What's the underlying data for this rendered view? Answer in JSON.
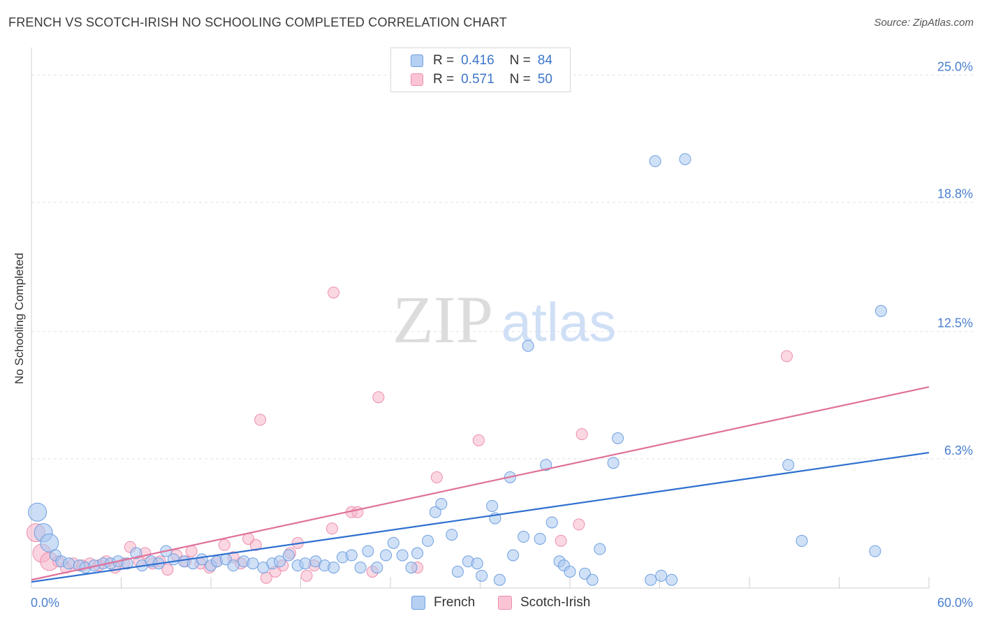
{
  "title": "FRENCH VS SCOTCH-IRISH NO SCHOOLING COMPLETED CORRELATION CHART",
  "source": "Source: ZipAtlas.com",
  "watermark": {
    "zip": "ZIP",
    "atlas": "atlas"
  },
  "legend": {
    "r_label": "R =",
    "n_label": "N =",
    "rows": [
      {
        "name": "French",
        "r": "0.416",
        "n": "84"
      },
      {
        "name": "Scotch-Irish",
        "r": "0.571",
        "n": "50"
      }
    ]
  },
  "colors": {
    "french_fill": "#a9c8f0",
    "french_stroke": "#6f9fe0",
    "french_line": "#2e6fcf",
    "scotch_fill": "#f7b6cb",
    "scotch_stroke": "#ec8fae",
    "scotch_line": "#e0709a",
    "tick_text": "#4a7fd0",
    "grid": "#e2e2e2"
  },
  "chart_data": {
    "type": "scatter",
    "title": "FRENCH VS SCOTCH-IRISH NO SCHOOLING COMPLETED CORRELATION CHART",
    "xlabel": "",
    "ylabel": "No Schooling Completed",
    "xlim": [
      0,
      60
    ],
    "ylim": [
      0,
      26
    ],
    "x_tick_labels": [
      "0.0%",
      "60.0%"
    ],
    "y_ticks": [
      6.3,
      12.5,
      18.8,
      25.0
    ],
    "y_tick_labels": [
      "6.3%",
      "12.5%",
      "18.8%",
      "25.0%"
    ],
    "series": [
      {
        "name": "French",
        "trend": [
          [
            0,
            0.3
          ],
          [
            60,
            6.6
          ]
        ],
        "points": [
          [
            0.4,
            3.7
          ],
          [
            0.8,
            2.7
          ],
          [
            1.2,
            2.2
          ],
          [
            1.6,
            1.6
          ],
          [
            2.0,
            1.3
          ],
          [
            2.5,
            1.2
          ],
          [
            3.2,
            1.1
          ],
          [
            3.6,
            1.0
          ],
          [
            4.2,
            1.1
          ],
          [
            4.8,
            1.2
          ],
          [
            5.3,
            1.2
          ],
          [
            5.8,
            1.3
          ],
          [
            6.4,
            1.2
          ],
          [
            7.0,
            1.7
          ],
          [
            7.4,
            1.1
          ],
          [
            8.0,
            1.3
          ],
          [
            8.5,
            1.2
          ],
          [
            9.0,
            1.8
          ],
          [
            9.5,
            1.4
          ],
          [
            10.2,
            1.3
          ],
          [
            10.8,
            1.2
          ],
          [
            11.4,
            1.4
          ],
          [
            12.0,
            1.1
          ],
          [
            12.4,
            1.3
          ],
          [
            13.0,
            1.4
          ],
          [
            13.5,
            1.1
          ],
          [
            14.2,
            1.3
          ],
          [
            14.8,
            1.2
          ],
          [
            15.5,
            1.0
          ],
          [
            16.1,
            1.2
          ],
          [
            16.6,
            1.3
          ],
          [
            17.2,
            1.6
          ],
          [
            17.8,
            1.1
          ],
          [
            18.3,
            1.2
          ],
          [
            19.0,
            1.3
          ],
          [
            19.6,
            1.1
          ],
          [
            20.2,
            1.0
          ],
          [
            20.8,
            1.5
          ],
          [
            21.4,
            1.6
          ],
          [
            22.0,
            1.0
          ],
          [
            22.5,
            1.8
          ],
          [
            23.1,
            1.0
          ],
          [
            23.7,
            1.6
          ],
          [
            24.2,
            2.2
          ],
          [
            24.8,
            1.6
          ],
          [
            25.4,
            1.0
          ],
          [
            25.8,
            1.7
          ],
          [
            26.5,
            2.3
          ],
          [
            27.0,
            3.7
          ],
          [
            27.4,
            4.1
          ],
          [
            28.1,
            2.6
          ],
          [
            28.5,
            0.8
          ],
          [
            29.2,
            1.3
          ],
          [
            29.8,
            1.2
          ],
          [
            30.1,
            0.6
          ],
          [
            30.8,
            4.0
          ],
          [
            31.0,
            3.4
          ],
          [
            31.3,
            0.4
          ],
          [
            32.0,
            5.4
          ],
          [
            32.2,
            1.6
          ],
          [
            32.9,
            2.5
          ],
          [
            33.2,
            11.8
          ],
          [
            34.0,
            2.4
          ],
          [
            34.4,
            6.0
          ],
          [
            34.8,
            3.2
          ],
          [
            35.3,
            1.3
          ],
          [
            35.6,
            1.1
          ],
          [
            36.0,
            0.8
          ],
          [
            37.0,
            0.7
          ],
          [
            37.5,
            0.4
          ],
          [
            38.0,
            1.9
          ],
          [
            38.9,
            6.1
          ],
          [
            39.2,
            7.3
          ],
          [
            41.4,
            0.4
          ],
          [
            41.7,
            20.8
          ],
          [
            42.1,
            0.6
          ],
          [
            42.8,
            0.4
          ],
          [
            43.7,
            20.9
          ],
          [
            50.6,
            6.0
          ],
          [
            51.5,
            2.3
          ],
          [
            56.4,
            1.8
          ],
          [
            56.8,
            13.5
          ]
        ],
        "sizes_large": [
          [
            0.4,
            3.7
          ],
          [
            0.8,
            2.7
          ],
          [
            1.2,
            2.2
          ]
        ]
      },
      {
        "name": "Scotch-Irish",
        "trend": [
          [
            0,
            0.4
          ],
          [
            60,
            9.8
          ]
        ],
        "points": [
          [
            0.3,
            2.7
          ],
          [
            0.7,
            1.7
          ],
          [
            1.2,
            1.3
          ],
          [
            1.8,
            1.3
          ],
          [
            2.3,
            1.0
          ],
          [
            2.8,
            1.2
          ],
          [
            3.4,
            1.1
          ],
          [
            3.9,
            1.2
          ],
          [
            4.5,
            1.1
          ],
          [
            5.0,
            1.3
          ],
          [
            5.6,
            1.0
          ],
          [
            6.2,
            1.2
          ],
          [
            6.6,
            2.0
          ],
          [
            7.2,
            1.3
          ],
          [
            7.6,
            1.7
          ],
          [
            8.1,
            1.2
          ],
          [
            8.6,
            1.3
          ],
          [
            9.1,
            0.9
          ],
          [
            9.7,
            1.6
          ],
          [
            10.3,
            1.3
          ],
          [
            10.7,
            1.8
          ],
          [
            11.3,
            1.2
          ],
          [
            11.9,
            1.0
          ],
          [
            12.4,
            1.3
          ],
          [
            12.9,
            2.1
          ],
          [
            13.5,
            1.5
          ],
          [
            14.0,
            1.2
          ],
          [
            14.5,
            2.4
          ],
          [
            15.0,
            2.1
          ],
          [
            15.3,
            8.2
          ],
          [
            15.7,
            0.5
          ],
          [
            16.3,
            0.8
          ],
          [
            16.8,
            1.1
          ],
          [
            17.3,
            1.7
          ],
          [
            17.8,
            2.2
          ],
          [
            18.4,
            0.6
          ],
          [
            18.9,
            1.1
          ],
          [
            20.1,
            2.9
          ],
          [
            20.2,
            14.4
          ],
          [
            21.4,
            3.7
          ],
          [
            21.8,
            3.7
          ],
          [
            22.8,
            0.8
          ],
          [
            23.2,
            9.3
          ],
          [
            25.8,
            1.0
          ],
          [
            27.1,
            5.4
          ],
          [
            29.9,
            7.2
          ],
          [
            35.4,
            2.3
          ],
          [
            36.6,
            3.1
          ],
          [
            36.8,
            7.5
          ],
          [
            50.5,
            11.3
          ]
        ],
        "sizes_large": [
          [
            0.3,
            2.7
          ],
          [
            0.7,
            1.7
          ],
          [
            1.2,
            1.3
          ]
        ]
      }
    ]
  }
}
